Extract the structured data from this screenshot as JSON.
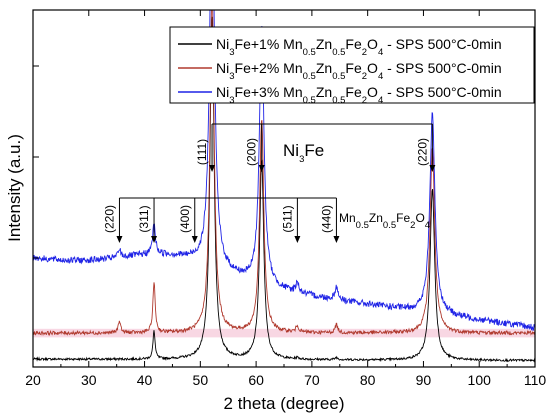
{
  "chart_data": {
    "type": "line",
    "xlabel": "2 theta (degree)",
    "ylabel": "Intensity (a.u.)",
    "xlim": [
      20,
      110
    ],
    "ylim": [
      0,
      1000
    ],
    "x_ticks": [
      20,
      30,
      40,
      50,
      60,
      70,
      80,
      90,
      100,
      110
    ],
    "y_ticks_labeled": false,
    "grid": false,
    "legend_position": "top-right",
    "series": [
      {
        "name": "Ni3Fe+1% Mn0.5Zn0.5Fe2O4 - SPS 500°C-0min",
        "legend_parts": [
          "Ni",
          "3",
          "Fe+1% Mn",
          "0.5",
          "Zn",
          "0.5",
          "Fe",
          "2",
          "O",
          "4",
          " - SPS 500°C-0min"
        ],
        "color": "#000000",
        "baseline": 22,
        "end": 18,
        "noise": 3,
        "peaks": [
          [
            35.5,
            0,
            0.25
          ],
          [
            41.7,
            80,
            0.22
          ],
          [
            52.1,
            960,
            0.45
          ],
          [
            61.0,
            560,
            0.45
          ],
          [
            67.4,
            4,
            0.3
          ],
          [
            74.4,
            6,
            0.3
          ],
          [
            91.6,
            480,
            0.5
          ]
        ],
        "hump": [
          0,
          25
        ]
      },
      {
        "name": "Ni3Fe+2% Mn0.5Zn0.5Fe2O4 - SPS 500°C-0min",
        "legend_parts": [
          "Ni",
          "3",
          "Fe+2% Mn",
          "0.5",
          "Zn",
          "0.5",
          "Fe",
          "2",
          "O",
          "4",
          " - SPS 500°C-0min"
        ],
        "color": "#b03a2e",
        "band_color": "#f6c9d9",
        "baseline": 95,
        "end": 95,
        "noise": 5,
        "peaks": [
          [
            35.5,
            35,
            0.25
          ],
          [
            41.7,
            140,
            0.25
          ],
          [
            52.1,
            960,
            0.45
          ],
          [
            61.0,
            600,
            0.45
          ],
          [
            67.4,
            18,
            0.3
          ],
          [
            74.4,
            22,
            0.3
          ],
          [
            91.6,
            520,
            0.5
          ]
        ],
        "hump": [
          0,
          25
        ]
      },
      {
        "name": "Ni3Fe+3% Mn0.5Zn0.5Fe2O4 - SPS 500°C-0min",
        "legend_parts": [
          "Ni",
          "3",
          "Fe+3% Mn",
          "0.5",
          "Zn",
          "0.5",
          "Fe",
          "2",
          "O",
          "4",
          " - SPS 500°C-0min"
        ],
        "color": "#1f23e6",
        "baseline": 305,
        "end": 110,
        "noise": 9,
        "peaks": [
          [
            35.5,
            22,
            0.3
          ],
          [
            41.7,
            85,
            0.3
          ],
          [
            52.1,
            1100,
            0.5
          ],
          [
            61.0,
            720,
            0.5
          ],
          [
            67.4,
            28,
            0.35
          ],
          [
            74.4,
            35,
            0.35
          ],
          [
            91.6,
            560,
            0.55
          ]
        ],
        "hump": [
          60,
          13
        ]
      }
    ],
    "annotations": {
      "ni3fe": {
        "label_parts": [
          "Ni",
          "3",
          "Fe"
        ],
        "peaks": [
          {
            "hkl": "(111)",
            "x": 52.1
          },
          {
            "hkl": "(200)",
            "x": 61.0
          },
          {
            "hkl": "(220)",
            "x": 91.6
          }
        ]
      },
      "ferrite": {
        "label_parts": [
          "Mn",
          "0.5",
          "Zn",
          "0.5",
          "Fe",
          "2",
          "O",
          "4"
        ],
        "peaks": [
          {
            "hkl": "(220)",
            "x": 35.5
          },
          {
            "hkl": "(311)",
            "x": 41.7
          },
          {
            "hkl": "(400)",
            "x": 49.0
          },
          {
            "hkl": "(511)",
            "x": 67.4
          },
          {
            "hkl": "(440)",
            "x": 74.4
          }
        ]
      }
    }
  }
}
